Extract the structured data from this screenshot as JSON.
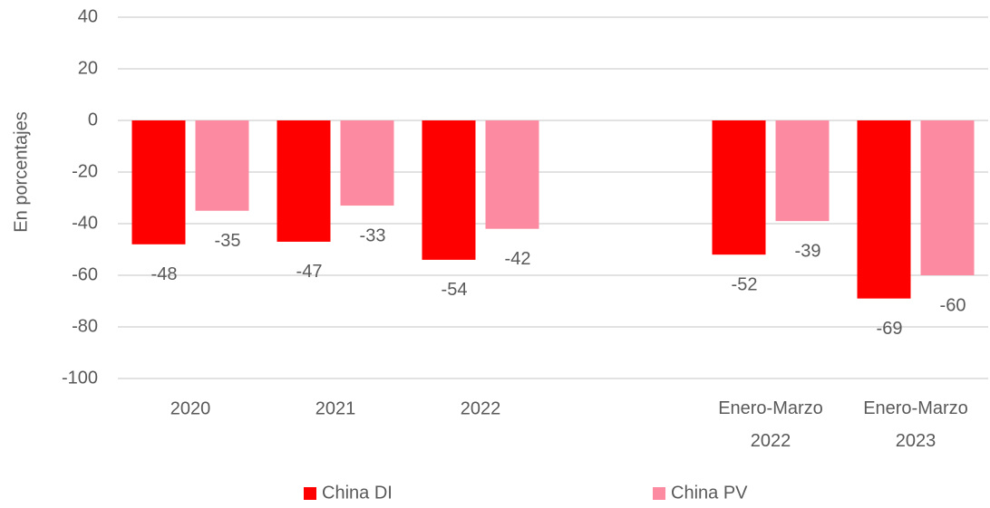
{
  "chart_data": {
    "type": "bar",
    "y_label": "En porcentajes",
    "categories": [
      "2020",
      "2021",
      "2022",
      null,
      "Enero-Marzo 2022",
      "Enero-Marzo 2023"
    ],
    "series": [
      {
        "name": "China DI",
        "color": "#ff0000",
        "values": [
          -48,
          -47,
          -54,
          null,
          -52,
          -69
        ]
      },
      {
        "name": "China PV",
        "color": "#fc8ba1",
        "values": [
          -35,
          -33,
          -42,
          null,
          -39,
          -60
        ]
      }
    ],
    "ylim": [
      -100,
      40
    ],
    "yticks": [
      -100,
      -80,
      -60,
      -40,
      -20,
      0,
      20,
      40
    ],
    "grid": true,
    "legend": "bottom"
  }
}
